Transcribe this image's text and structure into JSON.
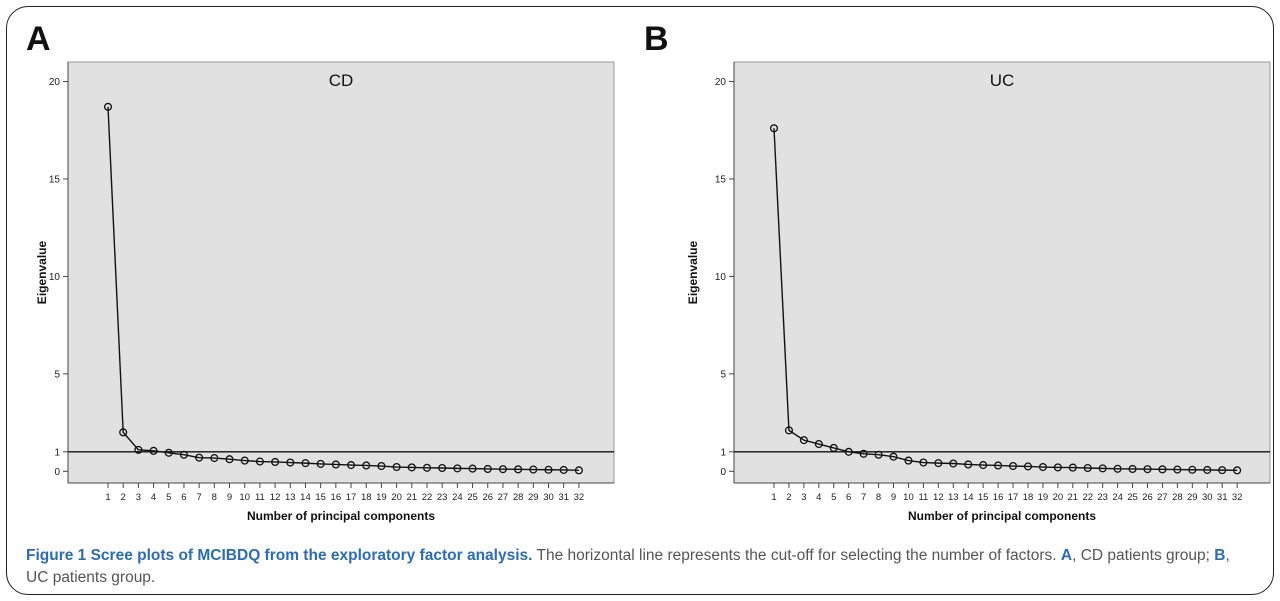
{
  "chart_data": [
    {
      "panel": "A",
      "type": "line",
      "title": "CD",
      "xlabel": "Number of principal components",
      "ylabel": "Eigenvalue",
      "x": [
        1,
        2,
        3,
        4,
        5,
        6,
        7,
        8,
        9,
        10,
        11,
        12,
        13,
        14,
        15,
        16,
        17,
        18,
        19,
        20,
        21,
        22,
        23,
        24,
        25,
        26,
        27,
        28,
        29,
        30,
        31,
        32
      ],
      "values": [
        18.7,
        2.0,
        1.1,
        1.05,
        0.95,
        0.85,
        0.7,
        0.68,
        0.62,
        0.55,
        0.5,
        0.48,
        0.45,
        0.42,
        0.38,
        0.35,
        0.32,
        0.3,
        0.27,
        0.22,
        0.2,
        0.18,
        0.17,
        0.15,
        0.14,
        0.12,
        0.11,
        0.1,
        0.09,
        0.08,
        0.07,
        0.05
      ],
      "cutoff": 1,
      "ylim": [
        -0.6,
        21
      ],
      "yticks": [
        20,
        15,
        10,
        5,
        1,
        0
      ],
      "grid": false
    },
    {
      "panel": "B",
      "type": "line",
      "title": "UC",
      "xlabel": "Number of principal components",
      "ylabel": "Eigenvalue",
      "x": [
        1,
        2,
        3,
        4,
        5,
        6,
        7,
        8,
        9,
        10,
        11,
        12,
        13,
        14,
        15,
        16,
        17,
        18,
        19,
        20,
        21,
        22,
        23,
        24,
        25,
        26,
        27,
        28,
        29,
        30,
        31,
        32
      ],
      "values": [
        17.6,
        2.1,
        1.6,
        1.4,
        1.2,
        1.0,
        0.9,
        0.85,
        0.75,
        0.55,
        0.45,
        0.42,
        0.4,
        0.35,
        0.32,
        0.3,
        0.27,
        0.25,
        0.22,
        0.2,
        0.19,
        0.17,
        0.15,
        0.13,
        0.12,
        0.11,
        0.1,
        0.09,
        0.08,
        0.07,
        0.06,
        0.05
      ],
      "cutoff": 1,
      "ylim": [
        -0.6,
        21
      ],
      "yticks": [
        20,
        15,
        10,
        5,
        1,
        0
      ],
      "grid": false
    }
  ],
  "caption": {
    "title": "Figure 1 Scree plots of MCIBDQ from the exploratory factor analysis.",
    "text_1": " The horizontal line represents the cut-off for selecting the number of factors. ",
    "a_letter": "A",
    "text_2": ", CD patients group; ",
    "b_letter": "B",
    "text_3": ", UC patients group."
  },
  "colors": {
    "plot_background": "#e1e1e1",
    "line": "#111111",
    "caption_title": "#2a6db5",
    "caption_text": "#555555"
  }
}
